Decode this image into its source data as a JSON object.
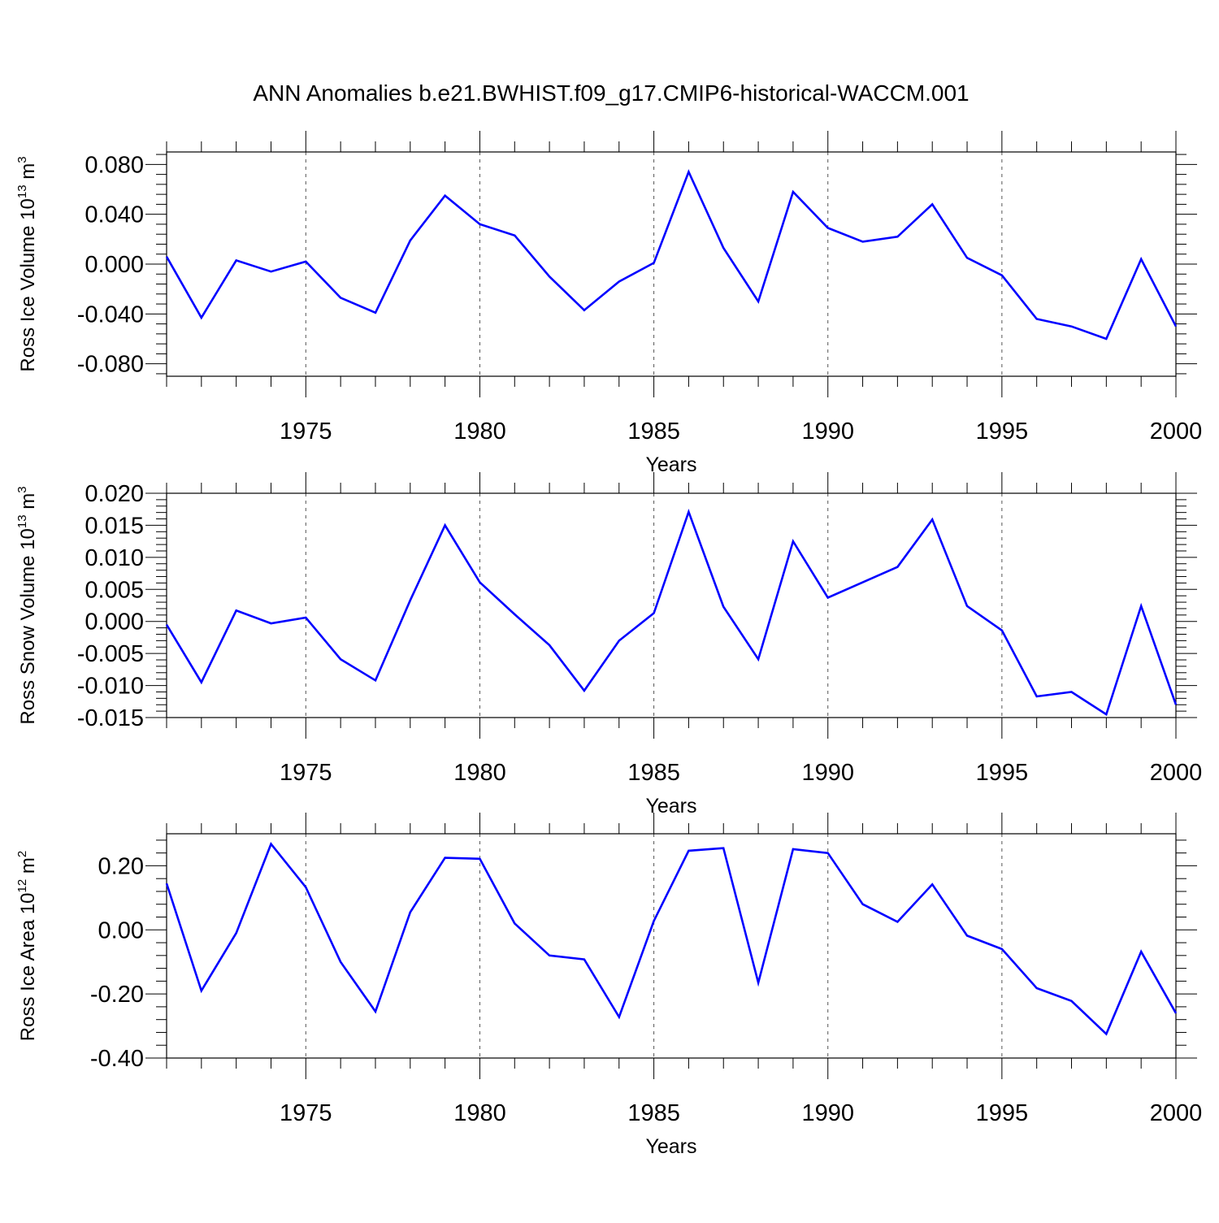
{
  "title": "ANN Anomalies b.e21.BWHIST.f09_g17.CMIP6-historical-WACCM.001",
  "line_color": "#0000ff",
  "chart_data": [
    {
      "type": "line",
      "ylabel": "Ross Ice Volume",
      "yunit_base": "10",
      "yunit_exp": "13",
      "yunit_sym": "m",
      "yunit_pow": "3",
      "xlabel": "Years",
      "xlim": [
        1971,
        2000
      ],
      "ylim": [
        -0.09,
        0.09
      ],
      "x_ticks": [
        1975,
        1980,
        1985,
        1990,
        1995,
        2000
      ],
      "y_ticks": [
        -0.08,
        -0.04,
        0.0,
        0.04,
        0.08
      ],
      "y_tick_labels": [
        "-0.080",
        "-0.040",
        "0.000",
        "0.040",
        "0.080"
      ],
      "grid": "vertical dashed at major x ticks",
      "x": [
        1971,
        1972,
        1973,
        1974,
        1975,
        1976,
        1977,
        1978,
        1979,
        1980,
        1981,
        1982,
        1983,
        1984,
        1985,
        1986,
        1987,
        1988,
        1989,
        1990,
        1991,
        1992,
        1993,
        1994,
        1995,
        1996,
        1997,
        1998,
        1999,
        2000
      ],
      "values": [
        0.006,
        -0.043,
        0.003,
        -0.006,
        0.002,
        -0.027,
        -0.039,
        0.019,
        0.055,
        0.032,
        0.023,
        -0.01,
        -0.037,
        -0.014,
        0.001,
        0.074,
        0.013,
        -0.03,
        0.058,
        0.029,
        0.018,
        0.022,
        0.048,
        0.005,
        -0.009,
        -0.044,
        -0.05,
        -0.06,
        0.004,
        -0.05
      ]
    },
    {
      "type": "line",
      "ylabel": "Ross Snow Volume",
      "yunit_base": "10",
      "yunit_exp": "13",
      "yunit_sym": "m",
      "yunit_pow": "3",
      "xlabel": "Years",
      "xlim": [
        1971,
        2000
      ],
      "ylim": [
        -0.015,
        0.02
      ],
      "x_ticks": [
        1975,
        1980,
        1985,
        1990,
        1995,
        2000
      ],
      "y_ticks": [
        -0.015,
        -0.01,
        -0.005,
        0.0,
        0.005,
        0.01,
        0.015,
        0.02
      ],
      "y_tick_labels": [
        "-0.015",
        "-0.010",
        "-0.005",
        "0.000",
        "0.005",
        "0.010",
        "0.015",
        "0.020"
      ],
      "grid": "vertical dashed at major x ticks",
      "x": [
        1971,
        1972,
        1973,
        1974,
        1975,
        1976,
        1977,
        1978,
        1979,
        1980,
        1981,
        1982,
        1983,
        1984,
        1985,
        1986,
        1987,
        1988,
        1989,
        1990,
        1991,
        1992,
        1993,
        1994,
        1995,
        1996,
        1997,
        1998,
        1999,
        2000
      ],
      "values": [
        -0.0005,
        -0.0095,
        0.0017,
        -0.0003,
        0.0006,
        -0.0059,
        -0.0092,
        0.0033,
        0.015,
        0.0061,
        0.0011,
        -0.0037,
        -0.0108,
        -0.003,
        0.0013,
        0.0171,
        0.0023,
        -0.0059,
        0.0125,
        0.0037,
        0.0061,
        0.0085,
        0.0159,
        0.0024,
        -0.0014,
        -0.0117,
        -0.011,
        -0.0145,
        0.0024,
        -0.013
      ]
    },
    {
      "type": "line",
      "ylabel": "Ross Ice Area",
      "yunit_base": "10",
      "yunit_exp": "12",
      "yunit_sym": "m",
      "yunit_pow": "2",
      "xlabel": "Years",
      "xlim": [
        1971,
        2000
      ],
      "ylim": [
        -0.4,
        0.3
      ],
      "x_ticks": [
        1975,
        1980,
        1985,
        1990,
        1995,
        2000
      ],
      "y_ticks": [
        -0.4,
        -0.2,
        0.0,
        0.2
      ],
      "y_tick_labels": [
        "-0.40",
        "-0.20",
        "0.00",
        "0.20"
      ],
      "grid": "vertical dashed at major x ticks",
      "x": [
        1971,
        1972,
        1973,
        1974,
        1975,
        1976,
        1977,
        1978,
        1979,
        1980,
        1981,
        1982,
        1983,
        1984,
        1985,
        1986,
        1987,
        1988,
        1989,
        1990,
        1991,
        1992,
        1993,
        1994,
        1995,
        1996,
        1997,
        1998,
        1999,
        2000
      ],
      "values": [
        0.145,
        -0.19,
        -0.01,
        0.268,
        0.133,
        -0.1,
        -0.255,
        0.055,
        0.225,
        0.222,
        0.02,
        -0.08,
        -0.092,
        -0.272,
        0.028,
        0.247,
        0.255,
        -0.165,
        0.252,
        0.24,
        0.08,
        0.025,
        0.142,
        -0.018,
        -0.06,
        -0.182,
        -0.222,
        -0.325,
        -0.068,
        -0.26
      ]
    }
  ]
}
